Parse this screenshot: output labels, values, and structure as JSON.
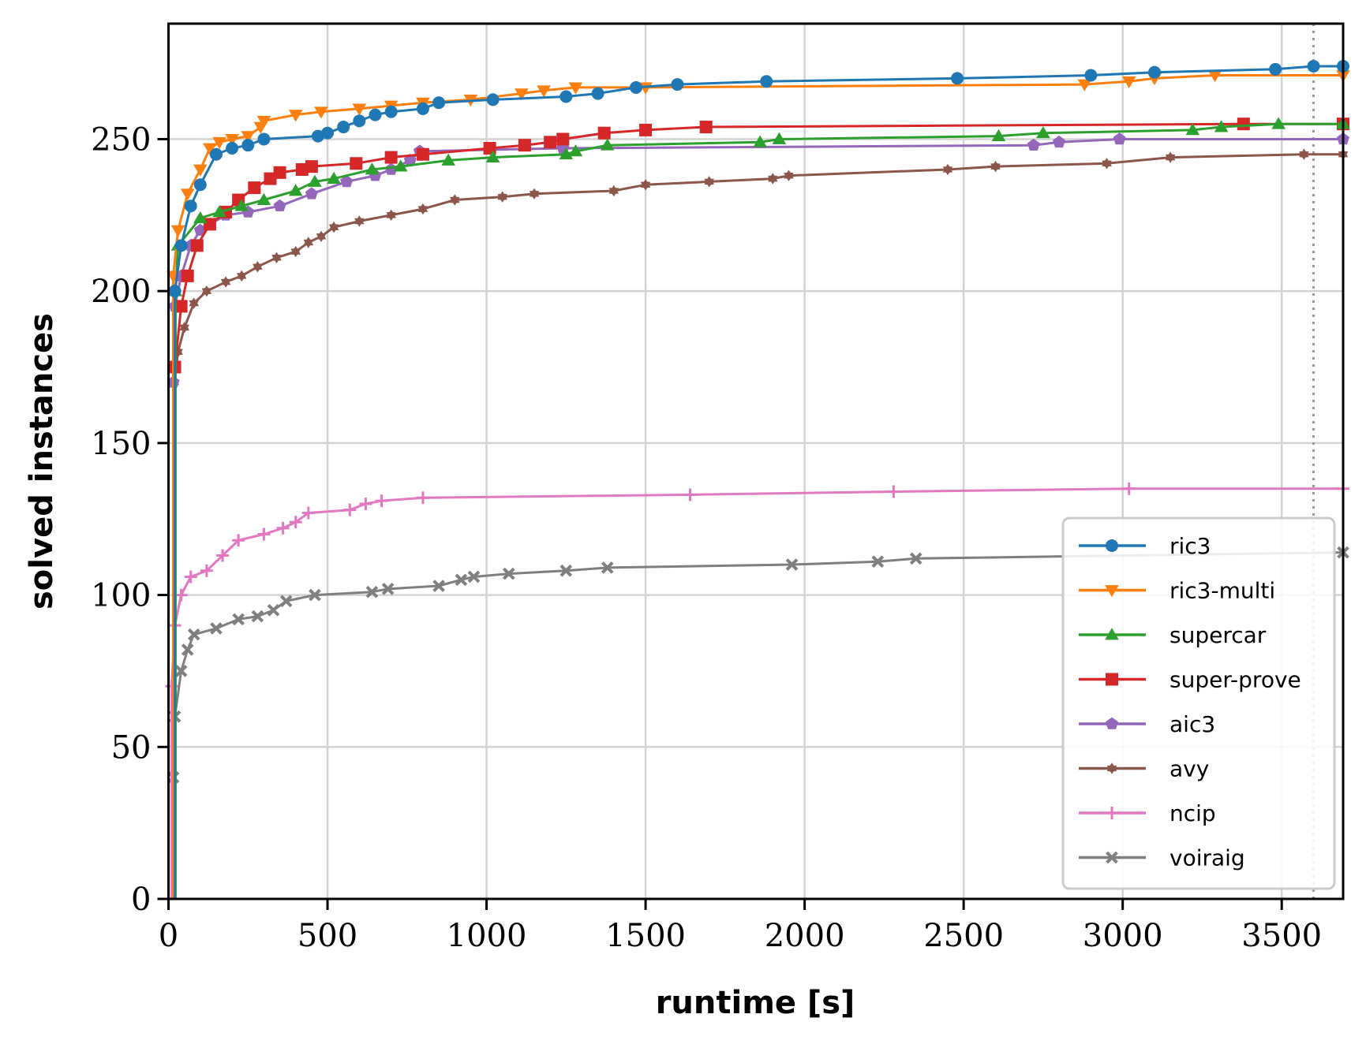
{
  "chart_data": {
    "type": "line",
    "title": "",
    "xlabel": "runtime [s]",
    "ylabel": "solved instances",
    "xlim": [
      0,
      3693
    ],
    "ylim": [
      0,
      288
    ],
    "grid": true,
    "timeout_line": 3600,
    "xticks": [
      0,
      500,
      1000,
      1500,
      2000,
      2500,
      3000,
      3500
    ],
    "xtick_labels": [
      "0",
      "500",
      "1000",
      "1500",
      "2000",
      "2500",
      "3000",
      "3500"
    ],
    "yticks": [
      0,
      50,
      100,
      150,
      200,
      250
    ],
    "ytick_labels": [
      "0",
      "50",
      "100",
      "150",
      "200",
      "250"
    ],
    "legend_position": "lower-right",
    "series": [
      {
        "name": "ric3",
        "color": "#1f77b4",
        "marker": "circle",
        "x": [
          20,
          20,
          40,
          70,
          100,
          150,
          200,
          250,
          300,
          470,
          500,
          550,
          600,
          650,
          700,
          800,
          850,
          1020,
          1250,
          1350,
          1470,
          1600,
          1880,
          2480,
          2900,
          3100,
          3480,
          3600,
          3693
        ],
        "y": [
          0,
          200,
          215,
          228,
          235,
          245,
          247,
          248,
          250,
          251,
          252,
          254,
          256,
          258,
          259,
          260,
          262,
          263,
          264,
          265,
          267,
          268,
          269,
          270,
          271,
          272,
          273,
          274,
          274
        ]
      },
      {
        "name": "ric3-multi",
        "color": "#ff7f0e",
        "marker": "triangle-down",
        "x": [
          15,
          15,
          30,
          60,
          100,
          130,
          160,
          200,
          250,
          290,
          300,
          400,
          480,
          600,
          700,
          800,
          950,
          1110,
          1180,
          1280,
          1500,
          2880,
          3020,
          3100,
          3290,
          3693
        ],
        "y": [
          0,
          205,
          220,
          232,
          240,
          247,
          249,
          250,
          251,
          254,
          256,
          258,
          259,
          260,
          261,
          262,
          263,
          265,
          266,
          267,
          267,
          268,
          269,
          270,
          271,
          271
        ]
      },
      {
        "name": "supercar",
        "color": "#2ca02c",
        "marker": "triangle-up",
        "x": [
          22,
          22,
          30,
          100,
          160,
          230,
          300,
          400,
          460,
          520,
          640,
          730,
          880,
          1020,
          1250,
          1280,
          1380,
          1860,
          1920,
          2610,
          2750,
          3220,
          3310,
          3490,
          3693
        ],
        "y": [
          0,
          200,
          215,
          224,
          226,
          228,
          230,
          233,
          236,
          237,
          240,
          241,
          243,
          244,
          245,
          246,
          248,
          249,
          250,
          251,
          252,
          253,
          254,
          255,
          255
        ]
      },
      {
        "name": "super-prove",
        "color": "#d62728",
        "marker": "square",
        "x": [
          20,
          20,
          40,
          60,
          90,
          130,
          180,
          220,
          270,
          320,
          350,
          420,
          450,
          590,
          700,
          800,
          1010,
          1120,
          1200,
          1240,
          1370,
          1500,
          1690,
          3380,
          3693
        ],
        "y": [
          0,
          175,
          195,
          205,
          215,
          222,
          226,
          230,
          234,
          237,
          239,
          240,
          241,
          242,
          244,
          245,
          247,
          248,
          249,
          250,
          252,
          253,
          254,
          255,
          255
        ]
      },
      {
        "name": "aic3",
        "color": "#9467bd",
        "marker": "pentagon",
        "x": [
          15,
          15,
          20,
          40,
          70,
          100,
          130,
          180,
          250,
          350,
          450,
          560,
          650,
          700,
          760,
          790,
          1240,
          2720,
          2800,
          2990,
          3693
        ],
        "y": [
          0,
          170,
          195,
          205,
          215,
          220,
          222,
          225,
          226,
          228,
          232,
          236,
          238,
          240,
          243,
          246,
          247,
          248,
          249,
          250,
          250
        ]
      },
      {
        "name": "avy",
        "color": "#8c564b",
        "marker": "star",
        "x": [
          18,
          18,
          30,
          50,
          80,
          120,
          180,
          230,
          280,
          340,
          400,
          440,
          480,
          520,
          600,
          700,
          800,
          900,
          1050,
          1150,
          1400,
          1500,
          1700,
          1900,
          1950,
          2450,
          2600,
          2950,
          3150,
          3570,
          3693
        ],
        "y": [
          0,
          170,
          180,
          188,
          196,
          200,
          203,
          205,
          208,
          211,
          213,
          216,
          218,
          221,
          223,
          225,
          227,
          230,
          231,
          232,
          233,
          235,
          236,
          237,
          238,
          240,
          241,
          242,
          244,
          245,
          245
        ]
      },
      {
        "name": "ncip",
        "color": "#e377c2",
        "marker": "plus",
        "x": [
          10,
          10,
          20,
          40,
          70,
          120,
          170,
          220,
          300,
          360,
          400,
          440,
          570,
          620,
          670,
          800,
          1640,
          2280,
          3020,
          3693
        ],
        "y": [
          0,
          70,
          90,
          100,
          106,
          108,
          113,
          118,
          120,
          122,
          124,
          127,
          128,
          130,
          131,
          132,
          133,
          134,
          135,
          135
        ]
      },
      {
        "name": "voiraig",
        "color": "#7f7f7f",
        "marker": "x",
        "x": [
          15,
          15,
          20,
          40,
          60,
          80,
          150,
          220,
          280,
          330,
          370,
          460,
          640,
          690,
          850,
          920,
          960,
          1070,
          1250,
          1380,
          1960,
          2230,
          2350,
          3693
        ],
        "y": [
          0,
          40,
          60,
          75,
          82,
          87,
          89,
          92,
          93,
          95,
          98,
          100,
          101,
          102,
          103,
          105,
          106,
          107,
          108,
          109,
          110,
          111,
          112,
          114
        ]
      }
    ]
  }
}
